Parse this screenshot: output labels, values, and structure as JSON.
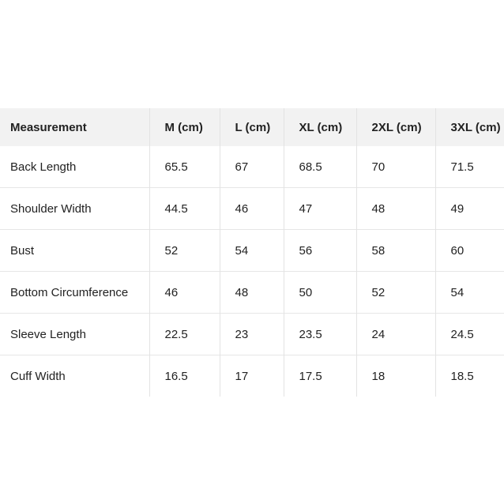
{
  "table": {
    "header": [
      "Measurement",
      "M (cm)",
      "L (cm)",
      "XL (cm)",
      "2XL (cm)",
      "3XL (cm)"
    ],
    "rows": [
      [
        "Back Length",
        "65.5",
        "67",
        "68.5",
        "70",
        "71.5"
      ],
      [
        "Shoulder Width",
        "44.5",
        "46",
        "47",
        "48",
        "49"
      ],
      [
        "Bust",
        "52",
        "54",
        "56",
        "58",
        "60"
      ],
      [
        "Bottom Circumference",
        "46",
        "48",
        "50",
        "52",
        "54"
      ],
      [
        "Sleeve Length",
        "22.5",
        "23",
        "23.5",
        "24",
        "24.5"
      ],
      [
        "Cuff Width",
        "16.5",
        "17",
        "17.5",
        "18",
        "18.5"
      ]
    ]
  }
}
